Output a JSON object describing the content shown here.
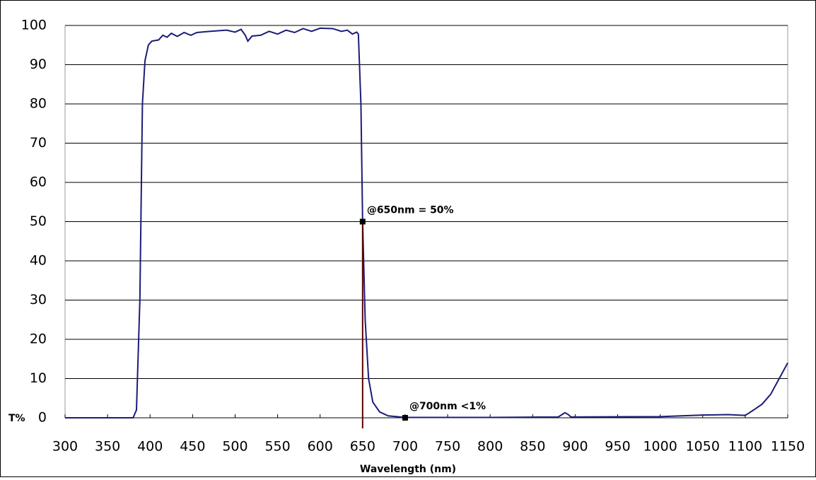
{
  "chart_data": {
    "type": "line",
    "x_label": "Wavelength (nm)",
    "y_label": "T%",
    "x": [
      300,
      380,
      384,
      388,
      391,
      394,
      398,
      402,
      410,
      415,
      420,
      425,
      432,
      440,
      448,
      455,
      470,
      490,
      500,
      507,
      512,
      515,
      520,
      530,
      540,
      550,
      560,
      570,
      580,
      590,
      600,
      615,
      625,
      632,
      638,
      643,
      645,
      648,
      650,
      653,
      657,
      662,
      670,
      680,
      700,
      800,
      880,
      888,
      892,
      895,
      1000,
      1050,
      1080,
      1100,
      1110,
      1120,
      1130,
      1140,
      1150
    ],
    "series": [
      {
        "color": "#1c1c78",
        "values": [
          0,
          0,
          2,
          30,
          80,
          91,
          95,
          96,
          96.3,
          97.5,
          97,
          98,
          97.2,
          98.2,
          97.5,
          98.2,
          98.5,
          98.8,
          98.3,
          99,
          97.5,
          96,
          97.3,
          97.5,
          98.5,
          97.8,
          98.8,
          98.2,
          99.2,
          98.5,
          99.3,
          99.2,
          98.5,
          98.8,
          97.8,
          98.3,
          97.8,
          80,
          50,
          25,
          10,
          4,
          1.5,
          0.5,
          0.1,
          0.1,
          0.2,
          1.3,
          0.8,
          0.2,
          0.3,
          0.7,
          0.8,
          0.6,
          2,
          3.5,
          6,
          10,
          14
        ]
      }
    ],
    "xlim": [
      300,
      1150
    ],
    "ylim": [
      0,
      100
    ],
    "xticks": [
      300,
      350,
      400,
      450,
      500,
      550,
      600,
      650,
      700,
      750,
      800,
      850,
      900,
      950,
      1000,
      1050,
      1100,
      1150
    ],
    "yticks": [
      0,
      10,
      20,
      30,
      40,
      50,
      60,
      70,
      80,
      90,
      100
    ],
    "grid": true,
    "annotations": [
      {
        "text": "@650nm = 50%",
        "x": 650,
        "y": 50,
        "color": "#5a0000"
      },
      {
        "text": "@700nm <1%",
        "x": 700,
        "y": 0
      }
    ]
  }
}
